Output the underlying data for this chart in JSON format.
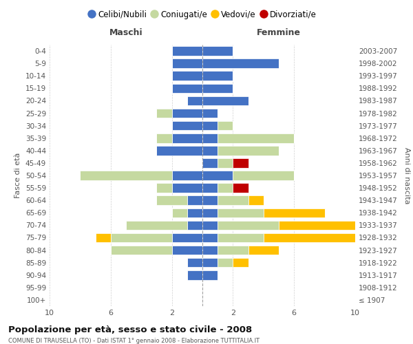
{
  "age_groups": [
    "100+",
    "95-99",
    "90-94",
    "85-89",
    "80-84",
    "75-79",
    "70-74",
    "65-69",
    "60-64",
    "55-59",
    "50-54",
    "45-49",
    "40-44",
    "35-39",
    "30-34",
    "25-29",
    "20-24",
    "15-19",
    "10-14",
    "5-9",
    "0-4"
  ],
  "birth_years": [
    "≤ 1907",
    "1908-1912",
    "1913-1917",
    "1918-1922",
    "1923-1927",
    "1928-1932",
    "1933-1937",
    "1938-1942",
    "1943-1947",
    "1948-1952",
    "1953-1957",
    "1958-1962",
    "1963-1967",
    "1968-1972",
    "1973-1977",
    "1978-1982",
    "1983-1987",
    "1988-1992",
    "1993-1997",
    "1998-2002",
    "2003-2007"
  ],
  "maschi": {
    "celibe": [
      0,
      0,
      1,
      1,
      2,
      2,
      1,
      1,
      1,
      2,
      2,
      0,
      3,
      2,
      2,
      2,
      1,
      2,
      2,
      2,
      2
    ],
    "coniugato": [
      0,
      0,
      0,
      0,
      4,
      4,
      4,
      1,
      2,
      1,
      6,
      0,
      0,
      1,
      0,
      1,
      0,
      0,
      0,
      0,
      0
    ],
    "vedovo": [
      0,
      0,
      0,
      0,
      0,
      1,
      0,
      0,
      0,
      0,
      0,
      0,
      0,
      0,
      0,
      0,
      0,
      0,
      0,
      0,
      0
    ],
    "divorziato": [
      0,
      0,
      0,
      0,
      0,
      0,
      0,
      0,
      0,
      0,
      0,
      0,
      0,
      0,
      0,
      0,
      0,
      0,
      0,
      0,
      0
    ]
  },
  "femmine": {
    "nubile": [
      0,
      0,
      1,
      1,
      1,
      1,
      1,
      1,
      1,
      1,
      2,
      1,
      1,
      1,
      1,
      1,
      3,
      2,
      2,
      5,
      2
    ],
    "coniugata": [
      0,
      0,
      0,
      1,
      2,
      3,
      4,
      3,
      2,
      1,
      4,
      1,
      4,
      5,
      1,
      0,
      0,
      0,
      0,
      0,
      0
    ],
    "vedova": [
      0,
      0,
      0,
      1,
      2,
      6,
      5,
      4,
      1,
      0,
      0,
      0,
      0,
      0,
      0,
      0,
      0,
      0,
      0,
      0,
      0
    ],
    "divorziata": [
      0,
      0,
      0,
      0,
      0,
      0,
      0,
      0,
      0,
      1,
      0,
      1,
      0,
      0,
      0,
      0,
      0,
      0,
      0,
      0,
      0
    ]
  },
  "colors": {
    "celibe_nubile": "#4472c4",
    "coniugato_coniugata": "#c5d9a0",
    "vedovo_vedova": "#ffc000",
    "divorziato_divorziata": "#c00000"
  },
  "xlim": 10,
  "title": "Popolazione per età, sesso e stato civile - 2008",
  "subtitle": "COMUNE DI TRAUSELLA (TO) - Dati ISTAT 1° gennaio 2008 - Elaborazione TUTTITALIA.IT",
  "ylabel_left": "Fasce di età",
  "ylabel_right": "Anni di nascita",
  "xlabel_left": "Maschi",
  "xlabel_right": "Femmine",
  "legend_labels": [
    "Celibi/Nubili",
    "Coniugati/e",
    "Vedovi/e",
    "Divorziati/e"
  ],
  "bg_color": "#ffffff",
  "grid_color": "#cccccc"
}
